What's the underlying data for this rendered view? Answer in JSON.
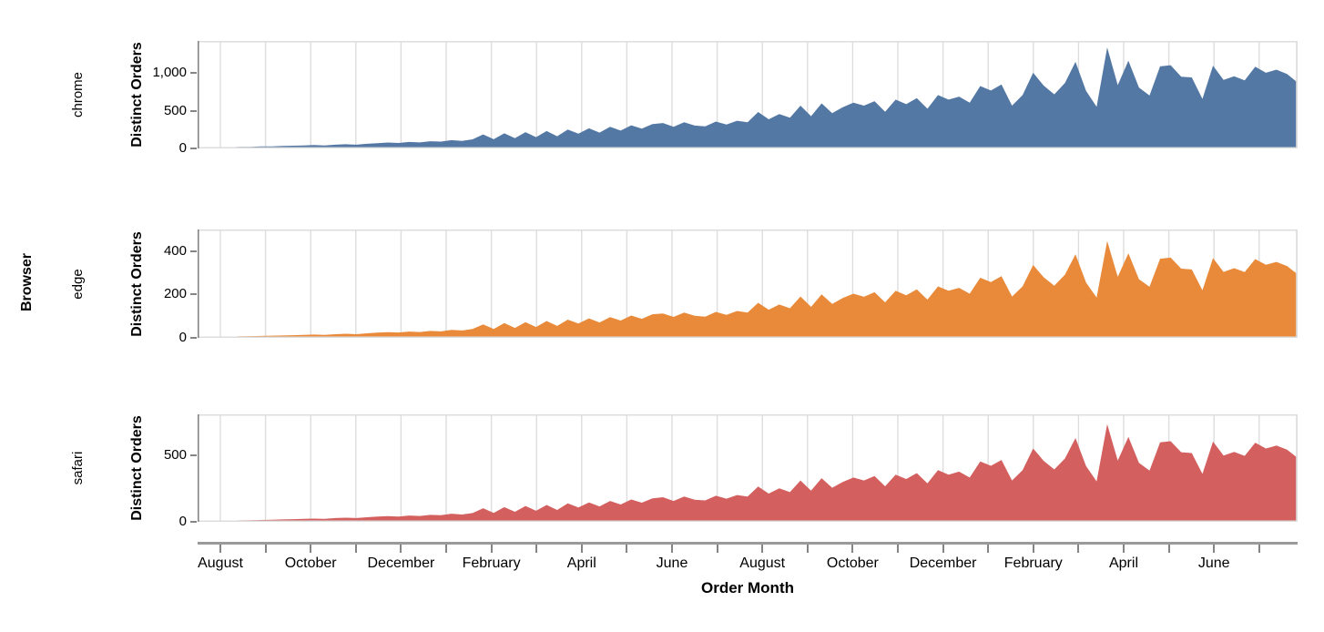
{
  "figure": {
    "facet_row_title": "Browser",
    "x_axis_title": "Order Month",
    "y_axis_title": "Distinct Orders"
  },
  "chart_data": {
    "type": "area",
    "title": "",
    "xlabel": "Order Month",
    "ylabel": "Distinct Orders",
    "faceted_by": "Browser",
    "grid": true,
    "x_unit": "weekly order counts from mid-July of year 1 through late July of year 3",
    "x_month_tick_count": 24,
    "x_tick_labels": [
      "August",
      "October",
      "December",
      "February",
      "April",
      "June",
      "August",
      "October",
      "December",
      "February",
      "April",
      "June"
    ],
    "facets": [
      {
        "row_label": "chrome",
        "color": "#5478a4",
        "y_ticks": [
          0,
          500,
          1000
        ],
        "y_tick_labels": [
          "0",
          "500",
          "1,000"
        ],
        "y_max": 1422,
        "values": [
          8,
          10,
          13,
          16,
          20,
          22,
          26,
          28,
          32,
          36,
          40,
          44,
          40,
          50,
          56,
          50,
          62,
          70,
          78,
          72,
          85,
          80,
          95,
          90,
          110,
          100,
          120,
          185,
          122,
          200,
          136,
          216,
          150,
          230,
          162,
          250,
          196,
          266,
          210,
          286,
          236,
          306,
          262,
          322,
          336,
          286,
          346,
          302,
          292,
          356,
          316,
          366,
          346,
          482,
          386,
          456,
          406,
          566,
          426,
          596,
          466,
          546,
          606,
          566,
          626,
          486,
          646,
          586,
          666,
          526,
          706,
          646,
          686,
          606,
          826,
          766,
          846,
          566,
          706,
          1002,
          832,
          716,
          866,
          1146,
          762,
          552,
          1336,
          838,
          1162,
          806,
          700,
          1086,
          1102,
          950,
          940,
          655,
          1096,
          906,
          956,
          902,
          1082,
          1002,
          1042,
          986,
          872
        ]
      },
      {
        "row_label": "edge",
        "color": "#e88a3a",
        "y_ticks": [
          0,
          200,
          400
        ],
        "y_tick_labels": [
          "0",
          "200",
          "400"
        ],
        "y_max": 501,
        "values": [
          3,
          3,
          4,
          5,
          7,
          8,
          9,
          10,
          11,
          12,
          14,
          15,
          14,
          17,
          19,
          17,
          21,
          24,
          26,
          25,
          29,
          27,
          32,
          30,
          37,
          34,
          41,
          62,
          41,
          68,
          46,
          73,
          50,
          78,
          55,
          84,
          66,
          90,
          71,
          96,
          80,
          103,
          88,
          109,
          113,
          97,
          117,
          102,
          98,
          120,
          106,
          124,
          117,
          162,
          130,
          154,
          137,
          191,
          143,
          201,
          157,
          184,
          204,
          190,
          211,
          164,
          218,
          197,
          224,
          177,
          238,
          218,
          231,
          204,
          278,
          258,
          285,
          191,
          238,
          337,
          280,
          241,
          292,
          386,
          256,
          186,
          448,
          282,
          391,
          271,
          236,
          366,
          371,
          320,
          316,
          220,
          369,
          305,
          322,
          304,
          364,
          338,
          351,
          332,
          294
        ]
      },
      {
        "row_label": "safari",
        "color": "#d45f5f",
        "y_ticks": [
          0,
          500
        ],
        "y_tick_labels": [
          "0",
          "500"
        ],
        "y_max": 808,
        "values": [
          4,
          6,
          7,
          9,
          11,
          12,
          14,
          15,
          18,
          20,
          22,
          24,
          22,
          28,
          31,
          28,
          34,
          39,
          43,
          40,
          47,
          44,
          52,
          50,
          61,
          55,
          66,
          102,
          67,
          110,
          75,
          119,
          83,
          127,
          89,
          138,
          108,
          146,
          116,
          157,
          130,
          168,
          144,
          177,
          185,
          157,
          190,
          166,
          161,
          196,
          174,
          201,
          190,
          265,
          212,
          251,
          223,
          311,
          234,
          328,
          256,
          300,
          333,
          311,
          344,
          267,
          355,
          322,
          366,
          289,
          388,
          355,
          377,
          333,
          454,
          421,
          465,
          311,
          388,
          551,
          458,
          394,
          476,
          630,
          419,
          304,
          735,
          461,
          639,
          443,
          385,
          597,
          606,
          523,
          517,
          360,
          603,
          498,
          526,
          496,
          595,
          551,
          573,
          542,
          480
        ]
      }
    ],
    "style": {
      "grid_color": "#dddddd",
      "border_color": "#dddddd",
      "axis_color": "#858585"
    }
  }
}
